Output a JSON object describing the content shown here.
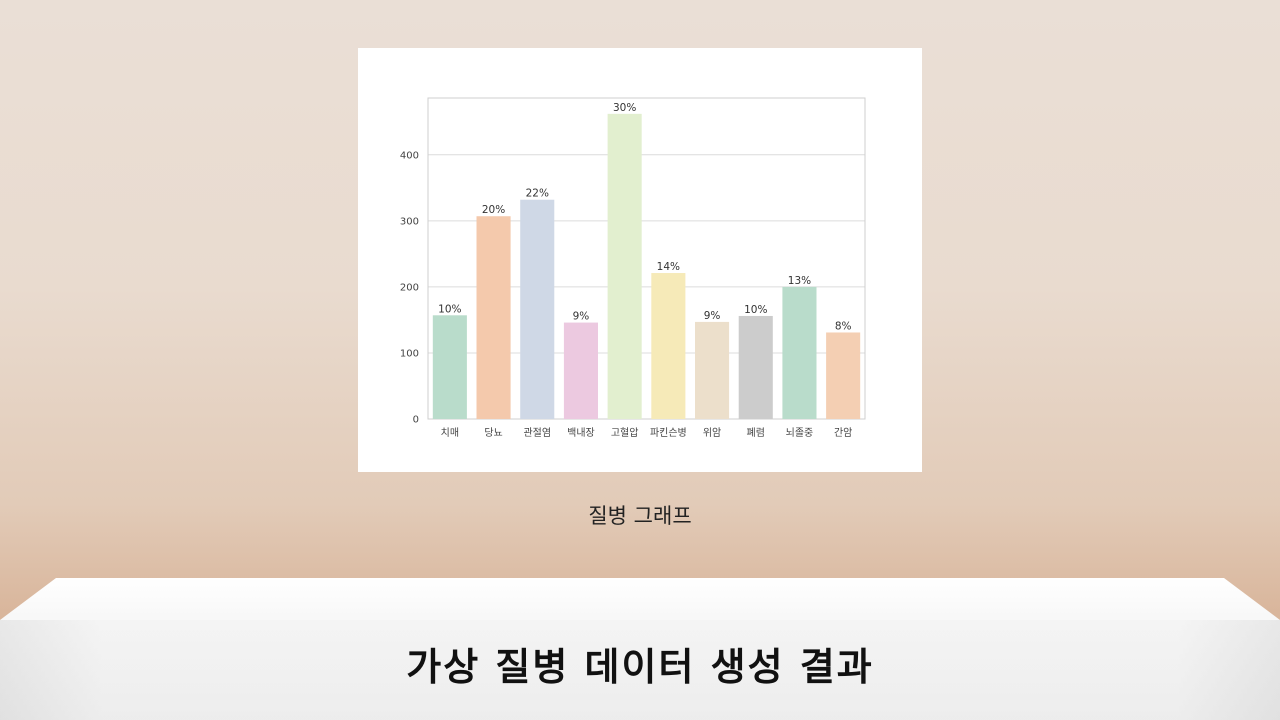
{
  "slide": {
    "caption": "질병 그래프",
    "title": "가상 질병 데이터 생성 결과"
  },
  "chart_data": {
    "type": "bar",
    "categories": [
      "치매",
      "당뇨",
      "관절염",
      "백내장",
      "고혈압",
      "파킨슨병",
      "위암",
      "폐렴",
      "뇌졸중",
      "간암"
    ],
    "values": [
      157,
      307,
      332,
      146,
      462,
      221,
      147,
      156,
      200,
      131
    ],
    "data_labels": [
      "10%",
      "20%",
      "22%",
      "9%",
      "30%",
      "14%",
      "9%",
      "10%",
      "13%",
      "8%"
    ],
    "colors": [
      "#b9dccb",
      "#f4c9ac",
      "#cfd8e6",
      "#ecc9e0",
      "#e2efcf",
      "#f6eab8",
      "#ecdfcb",
      "#cccccc",
      "#b9dccb",
      "#f4cfb3"
    ],
    "yticks": [
      0,
      100,
      200,
      300,
      400
    ],
    "ylim": [
      0,
      486
    ],
    "grid": true,
    "title": "",
    "xlabel": "",
    "ylabel": ""
  }
}
